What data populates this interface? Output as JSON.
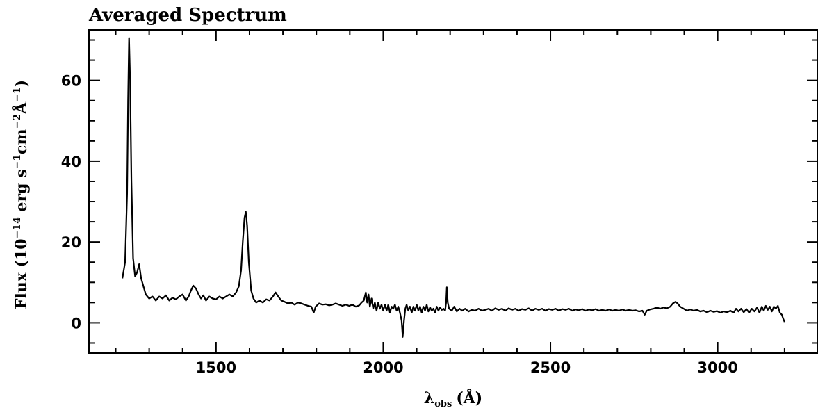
{
  "chart_data": {
    "type": "line",
    "title": "Averaged Spectrum",
    "xlabel": {
      "symbol": "λ",
      "subscript": "obs",
      "unit": "(Å)"
    },
    "ylabel": {
      "prefix": "Flux (10",
      "exp": "−14",
      "part2": " erg s",
      "exp2": "−1",
      "part3": "cm",
      "exp3": "−2",
      "part4": "Å",
      "exp4": "−1",
      "suffix": ")"
    },
    "xlim": [
      1120,
      3300
    ],
    "ylim": [
      -7.5,
      72.5
    ],
    "x_ticks": [
      1500,
      2000,
      2500,
      3000
    ],
    "y_ticks": [
      0,
      20,
      40,
      60
    ],
    "grid": false,
    "series": [
      {
        "points": [
          [
            1220,
            11.0
          ],
          [
            1228,
            15.0
          ],
          [
            1234,
            32.0
          ],
          [
            1237,
            55.0
          ],
          [
            1240,
            70.5
          ],
          [
            1243,
            60.0
          ],
          [
            1247,
            35.0
          ],
          [
            1252,
            16.0
          ],
          [
            1258,
            11.5
          ],
          [
            1264,
            12.5
          ],
          [
            1270,
            14.5
          ],
          [
            1276,
            11.0
          ],
          [
            1283,
            9.0
          ],
          [
            1290,
            7.0
          ],
          [
            1300,
            6.0
          ],
          [
            1310,
            6.5
          ],
          [
            1320,
            5.5
          ],
          [
            1330,
            6.5
          ],
          [
            1340,
            6.0
          ],
          [
            1350,
            6.8
          ],
          [
            1360,
            5.5
          ],
          [
            1370,
            6.2
          ],
          [
            1380,
            5.8
          ],
          [
            1390,
            6.5
          ],
          [
            1400,
            7.0
          ],
          [
            1410,
            5.5
          ],
          [
            1418,
            6.5
          ],
          [
            1425,
            8.0
          ],
          [
            1432,
            9.2
          ],
          [
            1440,
            8.5
          ],
          [
            1448,
            7.0
          ],
          [
            1455,
            6.0
          ],
          [
            1462,
            6.8
          ],
          [
            1470,
            5.5
          ],
          [
            1480,
            6.5
          ],
          [
            1490,
            6.0
          ],
          [
            1500,
            5.8
          ],
          [
            1510,
            6.5
          ],
          [
            1520,
            6.0
          ],
          [
            1530,
            6.5
          ],
          [
            1540,
            7.0
          ],
          [
            1550,
            6.5
          ],
          [
            1560,
            7.5
          ],
          [
            1568,
            9.0
          ],
          [
            1575,
            13.0
          ],
          [
            1580,
            20.0
          ],
          [
            1585,
            26.0
          ],
          [
            1589,
            27.5
          ],
          [
            1593,
            24.0
          ],
          [
            1598,
            15.0
          ],
          [
            1605,
            8.0
          ],
          [
            1612,
            6.0
          ],
          [
            1620,
            5.0
          ],
          [
            1630,
            5.5
          ],
          [
            1640,
            5.0
          ],
          [
            1650,
            5.8
          ],
          [
            1660,
            5.5
          ],
          [
            1670,
            6.5
          ],
          [
            1678,
            7.5
          ],
          [
            1686,
            6.5
          ],
          [
            1695,
            5.5
          ],
          [
            1705,
            5.2
          ],
          [
            1715,
            4.8
          ],
          [
            1725,
            5.0
          ],
          [
            1735,
            4.5
          ],
          [
            1745,
            5.0
          ],
          [
            1755,
            4.8
          ],
          [
            1765,
            4.5
          ],
          [
            1775,
            4.2
          ],
          [
            1785,
            4.0
          ],
          [
            1792,
            2.5
          ],
          [
            1798,
            4.0
          ],
          [
            1808,
            4.8
          ],
          [
            1818,
            4.5
          ],
          [
            1828,
            4.6
          ],
          [
            1838,
            4.3
          ],
          [
            1848,
            4.5
          ],
          [
            1858,
            4.8
          ],
          [
            1868,
            4.5
          ],
          [
            1878,
            4.2
          ],
          [
            1888,
            4.5
          ],
          [
            1898,
            4.2
          ],
          [
            1908,
            4.5
          ],
          [
            1918,
            4.0
          ],
          [
            1928,
            4.3
          ],
          [
            1935,
            5.0
          ],
          [
            1942,
            5.5
          ],
          [
            1948,
            7.5
          ],
          [
            1952,
            5.0
          ],
          [
            1956,
            7.0
          ],
          [
            1960,
            4.0
          ],
          [
            1965,
            6.0
          ],
          [
            1970,
            3.5
          ],
          [
            1975,
            5.0
          ],
          [
            1980,
            3.0
          ],
          [
            1985,
            5.0
          ],
          [
            1990,
            3.5
          ],
          [
            1995,
            4.5
          ],
          [
            2000,
            3.0
          ],
          [
            2005,
            4.5
          ],
          [
            2010,
            3.0
          ],
          [
            2015,
            4.5
          ],
          [
            2020,
            2.5
          ],
          [
            2025,
            4.0
          ],
          [
            2030,
            3.5
          ],
          [
            2035,
            4.5
          ],
          [
            2040,
            3.0
          ],
          [
            2045,
            4.0
          ],
          [
            2050,
            2.5
          ],
          [
            2055,
            0.5
          ],
          [
            2058,
            -3.5
          ],
          [
            2062,
            0.5
          ],
          [
            2066,
            3.5
          ],
          [
            2070,
            4.5
          ],
          [
            2075,
            3.0
          ],
          [
            2080,
            4.0
          ],
          [
            2085,
            2.5
          ],
          [
            2090,
            4.0
          ],
          [
            2095,
            3.0
          ],
          [
            2100,
            4.5
          ],
          [
            2105,
            3.0
          ],
          [
            2110,
            4.0
          ],
          [
            2115,
            2.5
          ],
          [
            2120,
            4.0
          ],
          [
            2125,
            3.0
          ],
          [
            2130,
            4.5
          ],
          [
            2135,
            2.8
          ],
          [
            2140,
            3.8
          ],
          [
            2145,
            3.0
          ],
          [
            2150,
            3.5
          ],
          [
            2155,
            2.5
          ],
          [
            2160,
            4.0
          ],
          [
            2165,
            3.0
          ],
          [
            2170,
            3.8
          ],
          [
            2175,
            3.2
          ],
          [
            2180,
            3.5
          ],
          [
            2185,
            3.0
          ],
          [
            2188,
            5.0
          ],
          [
            2190,
            8.8
          ],
          [
            2193,
            5.0
          ],
          [
            2197,
            3.5
          ],
          [
            2205,
            3.0
          ],
          [
            2212,
            4.0
          ],
          [
            2220,
            2.8
          ],
          [
            2228,
            3.5
          ],
          [
            2236,
            3.0
          ],
          [
            2245,
            3.5
          ],
          [
            2255,
            2.8
          ],
          [
            2265,
            3.2
          ],
          [
            2275,
            3.0
          ],
          [
            2285,
            3.5
          ],
          [
            2295,
            3.0
          ],
          [
            2305,
            3.2
          ],
          [
            2315,
            3.5
          ],
          [
            2325,
            3.0
          ],
          [
            2335,
            3.6
          ],
          [
            2345,
            3.2
          ],
          [
            2355,
            3.5
          ],
          [
            2365,
            3.0
          ],
          [
            2375,
            3.6
          ],
          [
            2385,
            3.2
          ],
          [
            2395,
            3.5
          ],
          [
            2405,
            3.0
          ],
          [
            2415,
            3.4
          ],
          [
            2425,
            3.2
          ],
          [
            2435,
            3.6
          ],
          [
            2445,
            3.0
          ],
          [
            2455,
            3.5
          ],
          [
            2465,
            3.2
          ],
          [
            2475,
            3.5
          ],
          [
            2485,
            3.0
          ],
          [
            2495,
            3.4
          ],
          [
            2505,
            3.2
          ],
          [
            2515,
            3.5
          ],
          [
            2525,
            3.0
          ],
          [
            2535,
            3.4
          ],
          [
            2545,
            3.2
          ],
          [
            2555,
            3.5
          ],
          [
            2565,
            3.0
          ],
          [
            2575,
            3.3
          ],
          [
            2585,
            3.1
          ],
          [
            2595,
            3.4
          ],
          [
            2605,
            3.0
          ],
          [
            2615,
            3.3
          ],
          [
            2625,
            3.1
          ],
          [
            2635,
            3.4
          ],
          [
            2645,
            3.0
          ],
          [
            2655,
            3.2
          ],
          [
            2665,
            3.0
          ],
          [
            2675,
            3.3
          ],
          [
            2685,
            3.0
          ],
          [
            2695,
            3.2
          ],
          [
            2705,
            3.0
          ],
          [
            2715,
            3.3
          ],
          [
            2725,
            3.0
          ],
          [
            2735,
            3.2
          ],
          [
            2745,
            3.0
          ],
          [
            2755,
            3.1
          ],
          [
            2765,
            2.8
          ],
          [
            2775,
            3.0
          ],
          [
            2782,
            2.0
          ],
          [
            2788,
            3.0
          ],
          [
            2798,
            3.3
          ],
          [
            2808,
            3.5
          ],
          [
            2818,
            3.8
          ],
          [
            2828,
            3.5
          ],
          [
            2838,
            3.8
          ],
          [
            2848,
            3.6
          ],
          [
            2858,
            4.0
          ],
          [
            2866,
            4.8
          ],
          [
            2874,
            5.2
          ],
          [
            2880,
            4.8
          ],
          [
            2888,
            4.0
          ],
          [
            2898,
            3.5
          ],
          [
            2908,
            3.0
          ],
          [
            2918,
            3.3
          ],
          [
            2928,
            3.0
          ],
          [
            2938,
            3.2
          ],
          [
            2948,
            2.8
          ],
          [
            2958,
            3.0
          ],
          [
            2968,
            2.6
          ],
          [
            2978,
            3.0
          ],
          [
            2988,
            2.7
          ],
          [
            2998,
            2.9
          ],
          [
            3008,
            2.5
          ],
          [
            3018,
            2.8
          ],
          [
            3028,
            2.6
          ],
          [
            3038,
            3.0
          ],
          [
            3048,
            2.5
          ],
          [
            3055,
            3.5
          ],
          [
            3062,
            2.8
          ],
          [
            3070,
            3.5
          ],
          [
            3078,
            2.6
          ],
          [
            3086,
            3.4
          ],
          [
            3094,
            2.5
          ],
          [
            3102,
            3.5
          ],
          [
            3110,
            2.8
          ],
          [
            3118,
            3.8
          ],
          [
            3125,
            2.5
          ],
          [
            3132,
            4.0
          ],
          [
            3138,
            3.0
          ],
          [
            3144,
            4.2
          ],
          [
            3150,
            3.2
          ],
          [
            3156,
            4.0
          ],
          [
            3162,
            2.8
          ],
          [
            3168,
            4.0
          ],
          [
            3174,
            3.5
          ],
          [
            3180,
            4.2
          ],
          [
            3186,
            2.5
          ],
          [
            3192,
            2.0
          ],
          [
            3196,
            1.0
          ],
          [
            3200,
            0.2
          ]
        ]
      }
    ]
  }
}
